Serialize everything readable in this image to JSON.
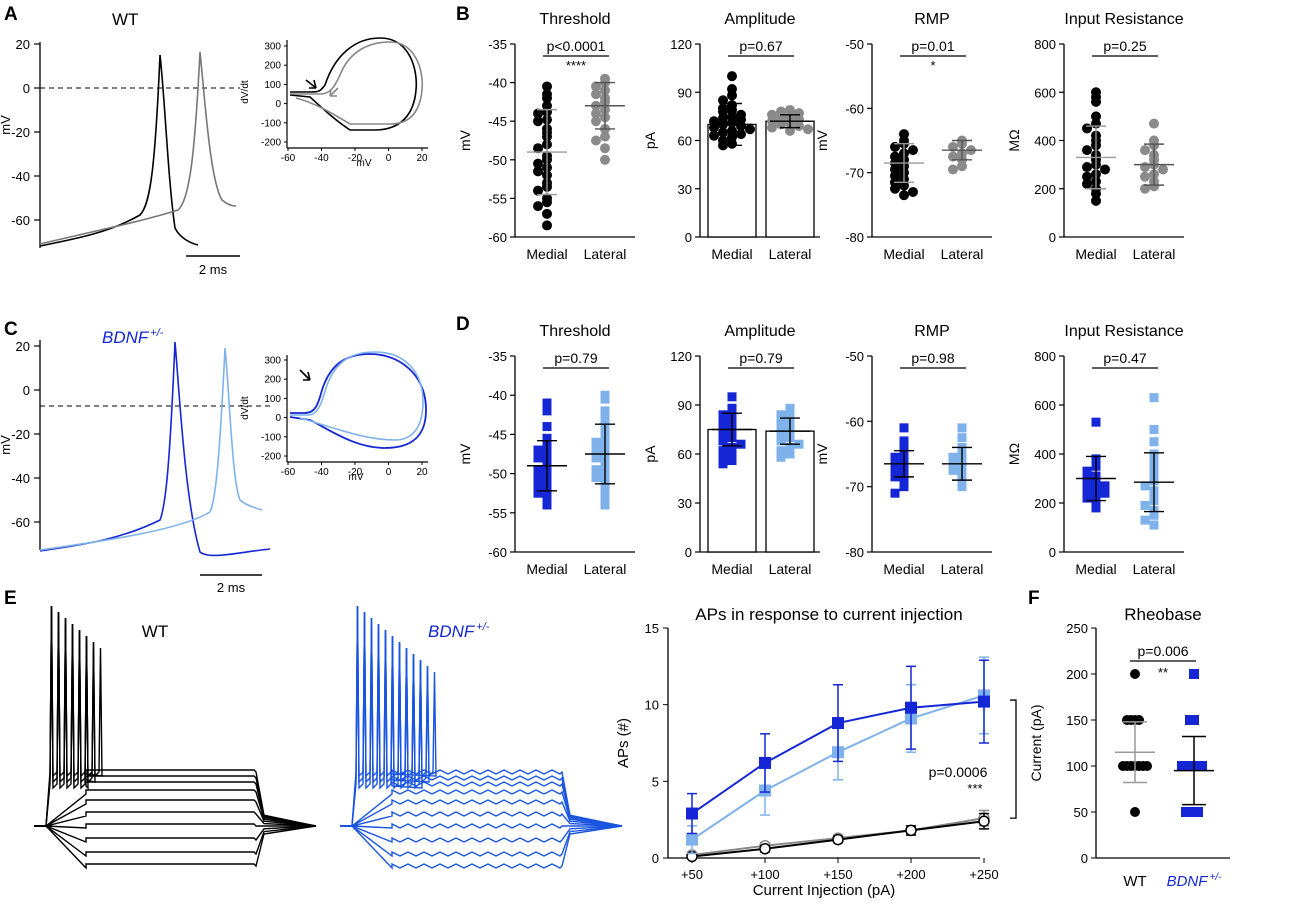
{
  "figure": {
    "panel_labels": {
      "A": "A",
      "B": "B",
      "C": "C",
      "D": "D",
      "E": "E",
      "F": "F"
    },
    "colors": {
      "wt_medial": "#000000",
      "wt_lateral": "#8a8a8a",
      "bdnf_medial": "#1426d6",
      "bdnf_lateral": "#7fb2ea",
      "bdnf_label": "#1426d6"
    }
  },
  "panel_A": {
    "genotype": "WT",
    "trace": {
      "ylabel": "mV",
      "yticks": [
        "20",
        "0",
        "-20",
        "-40",
        "-60"
      ],
      "scale_bar": "2 ms"
    },
    "phase": {
      "xlabel": "mV",
      "ylabel": "dV/dt",
      "xticks": [
        "-60",
        "-40",
        "-20",
        "0",
        "20"
      ],
      "yticks": [
        "300",
        "200",
        "100",
        "0",
        "-100",
        "-200"
      ]
    }
  },
  "panel_C": {
    "genotype": "BDNF",
    "genotype_sup": "+/-",
    "trace": {
      "ylabel": "mV",
      "yticks": [
        "20",
        "0",
        "-20",
        "-40",
        "-60"
      ],
      "scale_bar": "2 ms"
    },
    "phase": {
      "xlabel": "mV",
      "ylabel": "dV/dt",
      "xticks": [
        "-60",
        "-40",
        "-20",
        "0",
        "20"
      ],
      "yticks": [
        "300",
        "200",
        "100",
        "0",
        "-100",
        "-200"
      ]
    }
  },
  "panel_B": [
    {
      "title": "Threshold",
      "type": "scatter",
      "ylabel": "mV",
      "ylim": [
        -60,
        -35
      ],
      "yticks": [
        "-35",
        "-40",
        "-45",
        "-50",
        "-55",
        "-60"
      ],
      "categories": [
        "Medial",
        "Lateral"
      ],
      "pvalue": "p<0.0001",
      "stars": "****",
      "mean": [
        -49,
        -43
      ],
      "sd": [
        5.5,
        3
      ],
      "series": [
        {
          "name": "Medial",
          "values": [
            -40.5,
            -41.5,
            -42,
            -43,
            -43.8,
            -44,
            -44.8,
            -45,
            -46,
            -46.5,
            -47,
            -48,
            -48.5,
            -49.5,
            -50,
            -50.5,
            -51,
            -51.5,
            -52,
            -53,
            -53.5,
            -54,
            -55,
            -55.5,
            -56,
            -57,
            -58.5
          ]
        },
        {
          "name": "Lateral",
          "values": [
            -39.5,
            -40,
            -40.5,
            -41,
            -41.5,
            -42,
            -42.5,
            -43,
            -43.5,
            -44,
            -44.5,
            -45,
            -46,
            -47,
            -47.5,
            -48.5,
            -50
          ]
        }
      ]
    },
    {
      "title": "Amplitude",
      "type": "bar",
      "ylabel": "pA",
      "ylim": [
        0,
        120
      ],
      "yticks": [
        "120",
        "90",
        "60",
        "30",
        "0"
      ],
      "categories": [
        "Medial",
        "Lateral"
      ],
      "pvalue": "p=0.67",
      "stars": "",
      "mean": [
        70,
        72
      ],
      "sd": [
        13,
        4
      ],
      "series": [
        {
          "name": "Medial",
          "values": [
            100,
            92,
            88,
            85,
            82,
            80,
            79,
            78,
            76,
            75,
            74,
            73,
            72,
            71,
            70,
            69,
            68,
            67,
            66,
            65,
            64,
            63,
            62,
            60,
            58,
            57
          ]
        },
        {
          "name": "Lateral",
          "values": [
            79,
            78,
            77,
            76,
            75,
            74,
            73,
            72,
            71,
            70,
            69,
            68,
            67,
            66
          ]
        }
      ]
    },
    {
      "title": "RMP",
      "type": "scatter",
      "ylabel": "mV",
      "ylim": [
        -80,
        -50
      ],
      "yticks": [
        "-50",
        "-60",
        "-70",
        "-80"
      ],
      "categories": [
        "Medial",
        "Lateral"
      ],
      "pvalue": "p=0.01",
      "stars": "*",
      "mean": [
        -68.5,
        -66.5
      ],
      "sd": [
        3,
        1.5
      ],
      "series": [
        {
          "name": "Medial",
          "values": [
            -64,
            -65,
            -65.5,
            -66,
            -66.5,
            -67,
            -67.5,
            -68,
            -68.5,
            -69,
            -69.5,
            -70,
            -70.5,
            -71,
            -71.5,
            -72,
            -72.5,
            -73,
            -73.5
          ]
        },
        {
          "name": "Lateral",
          "values": [
            -65,
            -65.5,
            -66,
            -66.5,
            -67,
            -67.5,
            -68,
            -69,
            -69.5
          ]
        }
      ]
    },
    {
      "title": "Input Resistance",
      "type": "scatter",
      "ylabel": "MΩ",
      "ylim": [
        0,
        800
      ],
      "yticks": [
        "800",
        "600",
        "400",
        "200",
        "0"
      ],
      "categories": [
        "Medial",
        "Lateral"
      ],
      "pvalue": "p=0.25",
      "stars": "",
      "mean": [
        330,
        300
      ],
      "sd": [
        130,
        85
      ],
      "series": [
        {
          "name": "Medial",
          "values": [
            600,
            580,
            560,
            500,
            470,
            450,
            420,
            400,
            380,
            360,
            340,
            320,
            300,
            290,
            280,
            260,
            250,
            230,
            220,
            200,
            180,
            150
          ]
        },
        {
          "name": "Lateral",
          "values": [
            470,
            400,
            380,
            360,
            340,
            320,
            300,
            290,
            280,
            260,
            250,
            230,
            210,
            200
          ]
        }
      ]
    }
  ],
  "panel_D": [
    {
      "title": "Threshold",
      "type": "scatter",
      "ylabel": "mV",
      "ylim": [
        -60,
        -35
      ],
      "yticks": [
        "-35",
        "-40",
        "-45",
        "-50",
        "-55",
        "-60"
      ],
      "categories": [
        "Medial",
        "Lateral"
      ],
      "pvalue": "p=0.79",
      "stars": "",
      "mean": [
        -49,
        -47.5
      ],
      "sd": [
        3.2,
        3.8
      ],
      "series": [
        {
          "name": "Medial",
          "values": [
            -41,
            -42,
            -44,
            -45.5,
            -46.5,
            -47,
            -47.5,
            -48,
            -48.5,
            -49,
            -49.5,
            -50,
            -50.5,
            -51,
            -51.5,
            -52,
            -52.5,
            -53,
            -54
          ]
        },
        {
          "name": "Lateral",
          "values": [
            -40,
            -40.5,
            -42,
            -43,
            -44,
            -45,
            -45.5,
            -46,
            -46.5,
            -47,
            -47.5,
            -48,
            -48.5,
            -49,
            -49.5,
            -50,
            -50.5,
            -51,
            -52,
            -53,
            -54
          ]
        }
      ]
    },
    {
      "title": "Amplitude",
      "type": "bar",
      "ylabel": "pA",
      "ylim": [
        0,
        120
      ],
      "yticks": [
        "120",
        "90",
        "60",
        "30",
        "0"
      ],
      "categories": [
        "Medial",
        "Lateral"
      ],
      "pvalue": "p=0.79",
      "stars": "",
      "mean": [
        75,
        74
      ],
      "sd": [
        10,
        8
      ],
      "series": [
        {
          "name": "Medial",
          "values": [
            95,
            88,
            86,
            84,
            82,
            80,
            78,
            76,
            74,
            72,
            70,
            68,
            66,
            64,
            62,
            60,
            58,
            56,
            54
          ]
        },
        {
          "name": "Lateral",
          "values": [
            88,
            86,
            84,
            82,
            80,
            78,
            76,
            74,
            72,
            70,
            68,
            66,
            64,
            62,
            60,
            58
          ]
        }
      ]
    },
    {
      "title": "RMP",
      "type": "scatter",
      "ylabel": "mV",
      "ylim": [
        -80,
        -50
      ],
      "yticks": [
        "-50",
        "-60",
        "-70",
        "-80"
      ],
      "categories": [
        "Medial",
        "Lateral"
      ],
      "pvalue": "p=0.98",
      "stars": "",
      "mean": [
        -66.5,
        -66.5
      ],
      "sd": [
        2,
        2.5
      ],
      "series": [
        {
          "name": "Medial",
          "values": [
            -61,
            -63,
            -64,
            -65,
            -65.5,
            -66,
            -66.5,
            -67,
            -67.5,
            -68,
            -68.5,
            -69,
            -70,
            -71
          ]
        },
        {
          "name": "Lateral",
          "values": [
            -61,
            -62.5,
            -64,
            -65,
            -65.5,
            -66,
            -66.5,
            -67,
            -67.5,
            -68,
            -69,
            -70
          ]
        }
      ]
    },
    {
      "title": "Input Resistance",
      "type": "scatter",
      "ylabel": "MΩ",
      "ylim": [
        0,
        800
      ],
      "yticks": [
        "800",
        "600",
        "400",
        "200",
        "0"
      ],
      "categories": [
        "Medial",
        "Lateral"
      ],
      "pvalue": "p=0.47",
      "stars": "",
      "mean": [
        300,
        285
      ],
      "sd": [
        90,
        120
      ],
      "series": [
        {
          "name": "Medial",
          "values": [
            530,
            380,
            350,
            330,
            310,
            300,
            290,
            280,
            270,
            260,
            250,
            240,
            230,
            220,
            200,
            180
          ]
        },
        {
          "name": "Lateral",
          "values": [
            630,
            500,
            450,
            400,
            370,
            340,
            310,
            290,
            270,
            250,
            230,
            210,
            190,
            170,
            150,
            130,
            110
          ]
        }
      ]
    }
  ],
  "panel_E": {
    "trace_titles": [
      {
        "text": "WT",
        "sup": ""
      },
      {
        "text": "BDNF",
        "sup": "+/-"
      }
    ],
    "chart_data": {
      "type": "line",
      "title": "APs in response to current injection",
      "xlabel": "Current Injection (pA)",
      "ylabel": "APs (#)",
      "categories": [
        "+50",
        "+100",
        "+150",
        "+200",
        "+250"
      ],
      "yticks": [
        "15",
        "10",
        "5",
        "0"
      ],
      "ylim": [
        0,
        15
      ],
      "pvalue": "p=0.0006",
      "stars": "***",
      "series": [
        {
          "name": "WT medial",
          "marker": "circle",
          "values": [
            0.1,
            0.6,
            1.2,
            1.8,
            2.4
          ],
          "err": [
            0.1,
            0.2,
            0.2,
            0.3,
            0.5
          ]
        },
        {
          "name": "WT lateral",
          "marker": "circle",
          "values": [
            0.2,
            0.8,
            1.3,
            1.8,
            2.6
          ],
          "err": [
            0.1,
            0.2,
            0.2,
            0.3,
            0.5
          ]
        },
        {
          "name": "BDNF medial",
          "marker": "square",
          "values": [
            2.9,
            6.2,
            8.8,
            9.8,
            10.2
          ],
          "err": [
            1.3,
            1.9,
            2.5,
            2.7,
            2.7
          ]
        },
        {
          "name": "BDNF lateral",
          "marker": "square",
          "values": [
            1.2,
            4.4,
            6.9,
            9.1,
            10.6
          ],
          "err": [
            0.9,
            1.6,
            1.8,
            2.2,
            2.5
          ]
        }
      ]
    }
  },
  "panel_F": {
    "chart_data": {
      "type": "scatter",
      "title": "Rheobase",
      "ylabel": "Current (pA)",
      "categories": [
        "WT",
        "BDNF"
      ],
      "category_sup": [
        "",
        "+/-"
      ],
      "yticks": [
        "250",
        "200",
        "150",
        "100",
        "50",
        "0"
      ],
      "ylim": [
        0,
        250
      ],
      "pvalue": "p=0.006",
      "stars": "**",
      "mean": [
        115,
        95
      ],
      "sd": [
        33,
        37
      ],
      "series": [
        {
          "name": "WT",
          "values": [
            200,
            150,
            150,
            150,
            150,
            100,
            100,
            100,
            100,
            100,
            100,
            100,
            50
          ]
        },
        {
          "name": "BDNF",
          "values": [
            200,
            150,
            150,
            100,
            100,
            100,
            100,
            100,
            100,
            50,
            50,
            50,
            50
          ]
        }
      ]
    }
  }
}
